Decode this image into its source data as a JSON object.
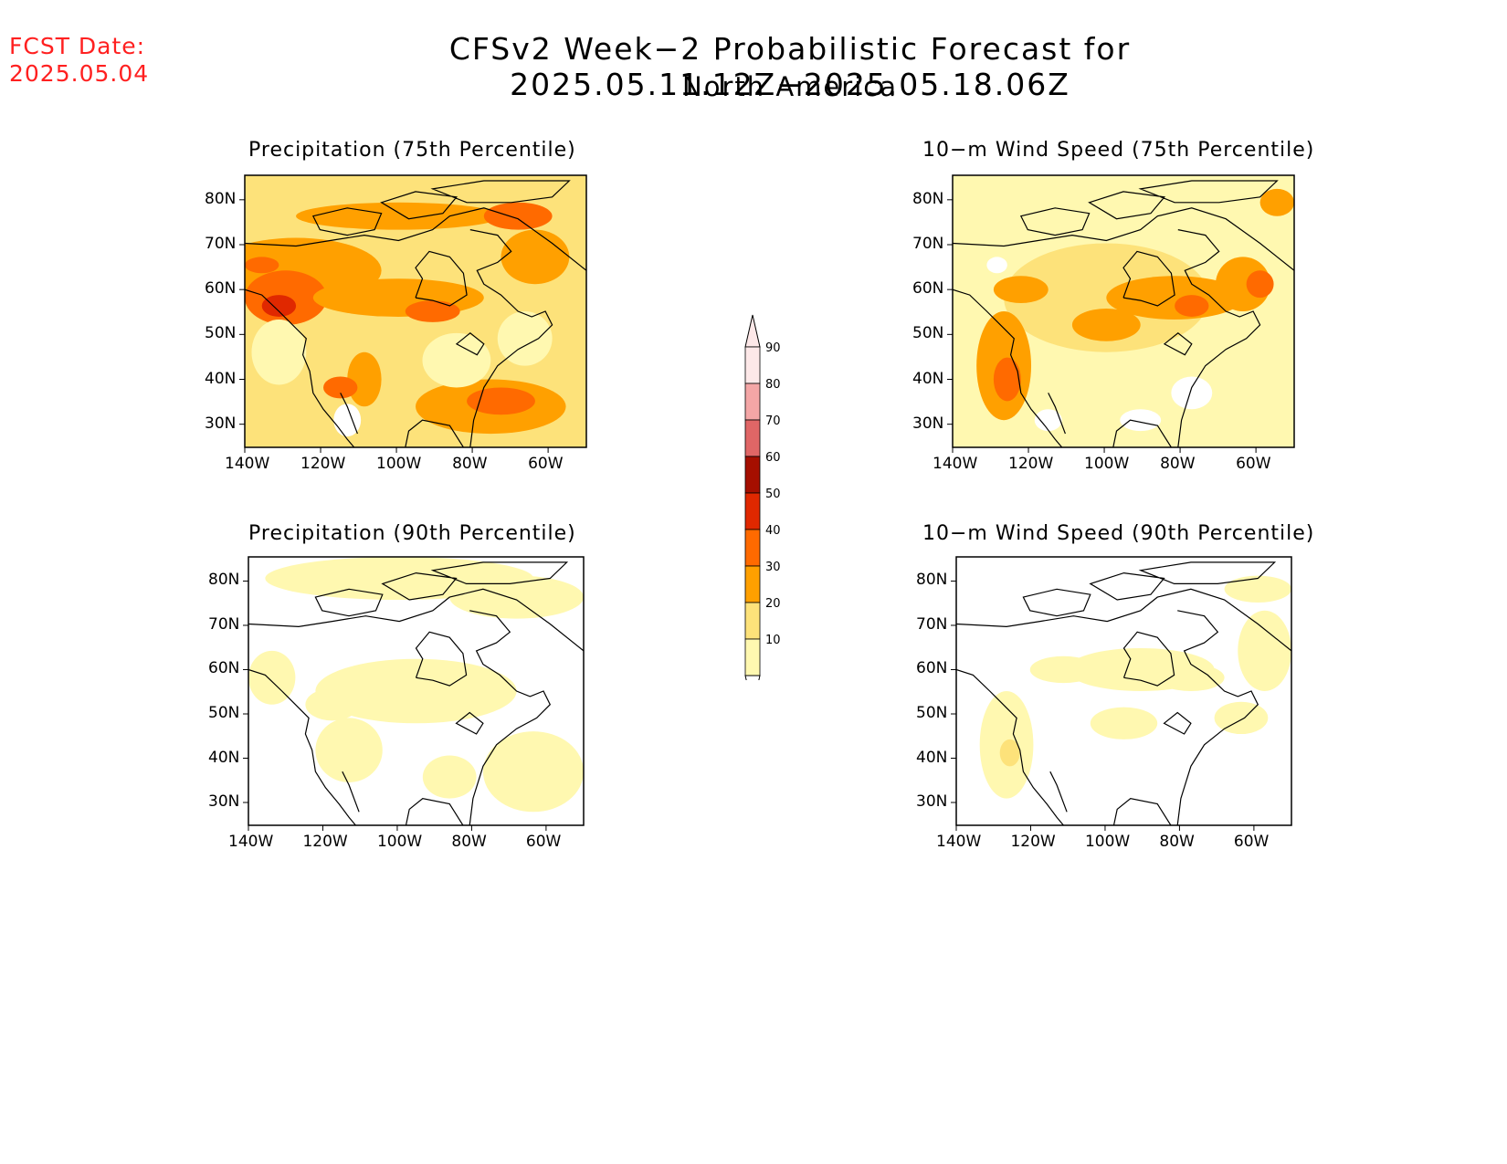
{
  "header": {
    "fcst_label": "FCST Date:",
    "fcst_date": "2025.05.04",
    "title": "CFSv2 Week−2 Probabilistic Forecast for 2025.05.11.12Z−2025.05.18.06Z",
    "subtitle": "North America"
  },
  "panels": [
    {
      "id": "precip75",
      "title": "Precipitation (75th Percentile)"
    },
    {
      "id": "wind75",
      "title": "10−m Wind Speed (75th Percentile)"
    },
    {
      "id": "precip90",
      "title": "Precipitation (90th Percentile)"
    },
    {
      "id": "wind90",
      "title": "10−m Wind Speed (90th Percentile)"
    }
  ],
  "axes": {
    "lat_labels": [
      "80N",
      "70N",
      "60N",
      "50N",
      "40N",
      "30N"
    ],
    "lon_labels": [
      "140W",
      "120W",
      "100W",
      "80W",
      "60W"
    ]
  },
  "colorbar": {
    "levels": [
      "90",
      "80",
      "70",
      "60",
      "50",
      "40",
      "30",
      "20",
      "10"
    ],
    "colors": [
      "#fde8e8",
      "#f4a6a6",
      "#e06666",
      "#a50f00",
      "#e02800",
      "#ff6a00",
      "#ffa000",
      "#fde27a",
      "#fff8b0"
    ]
  }
}
